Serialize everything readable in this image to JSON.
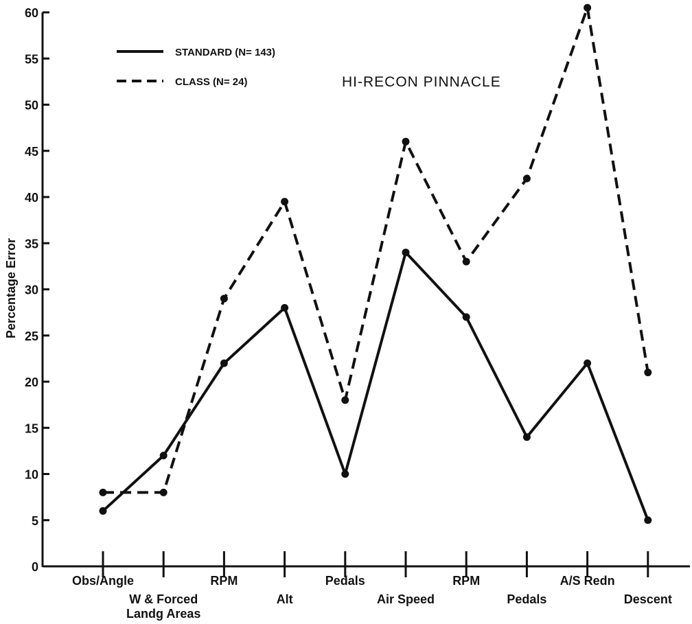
{
  "chart_data": {
    "type": "line",
    "title": "HI-RECON PINNACLE",
    "xlabel": "",
    "ylabel": "Percentage Error",
    "ylim": [
      0,
      60
    ],
    "yticks": [
      0,
      5,
      10,
      15,
      20,
      25,
      30,
      35,
      40,
      45,
      50,
      55,
      60
    ],
    "grid": false,
    "legend_position": "top-left",
    "categories": [
      [
        "Obs/Angle"
      ],
      [
        "W & Forced",
        "Landg Areas"
      ],
      [
        "RPM"
      ],
      [
        "Alt"
      ],
      [
        "Pedals"
      ],
      [
        "Air Speed"
      ],
      [
        "RPM"
      ],
      [
        "Pedals"
      ],
      [
        "A/S Redn"
      ],
      [
        "Descent"
      ]
    ],
    "series": [
      {
        "name": "STANDARD (N= 143)",
        "style": "solid",
        "values": [
          6,
          12,
          22,
          28,
          10,
          34,
          27,
          14,
          22,
          5
        ]
      },
      {
        "name": "CLASS (N= 24)",
        "style": "dashed",
        "values": [
          8,
          8,
          29,
          39.5,
          18,
          46,
          33,
          42,
          60.5,
          21
        ]
      }
    ],
    "colors": {
      "line": "#111111",
      "background": "#ffffff"
    }
  }
}
